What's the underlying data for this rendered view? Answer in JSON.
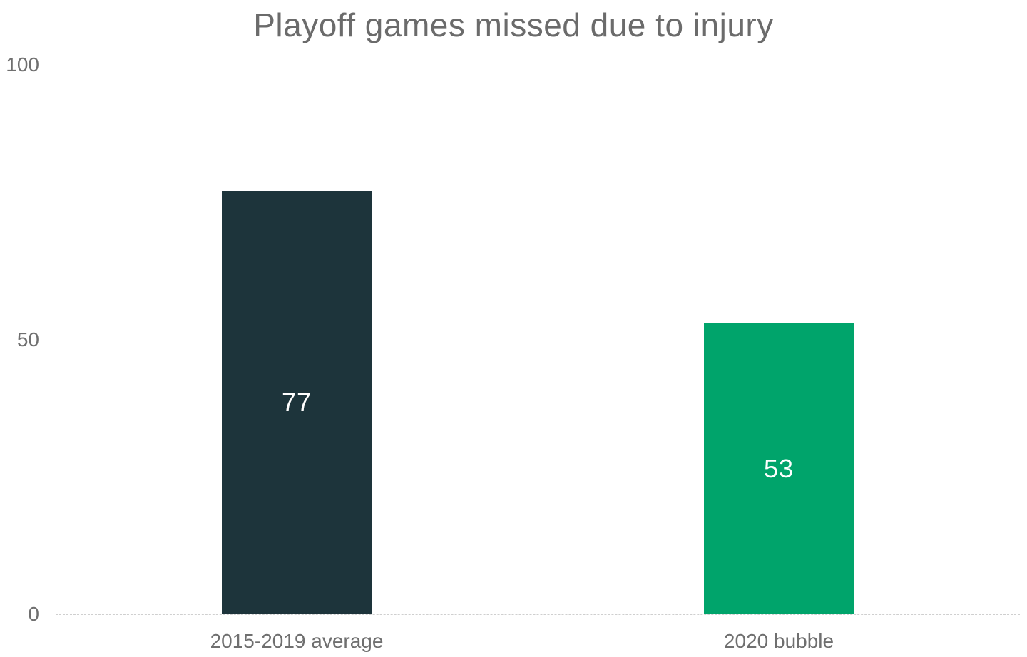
{
  "chart_data": {
    "type": "bar",
    "title": "Playoff games missed due to injury",
    "categories": [
      "2015-2019 average",
      "2020 bubble"
    ],
    "values": [
      77,
      53
    ],
    "bar_colors": [
      "#1d343b",
      "#00a46b"
    ],
    "value_label_color": "#ffffff",
    "xlabel": "",
    "ylabel": "",
    "ylim": [
      0,
      100
    ],
    "yticks": [
      0,
      50,
      100
    ],
    "grid": "none (dashed baseline at 0 only)",
    "legend": "none",
    "background_color": "#ffffff",
    "text_color": "#6f6f6f",
    "baseline_color": "#cfcfcf"
  }
}
